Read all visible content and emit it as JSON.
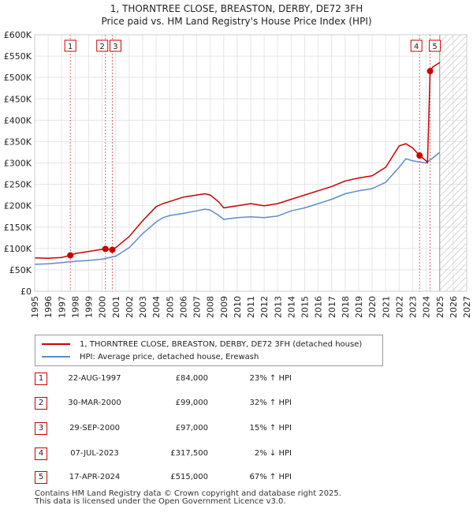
{
  "title_line1": "1, THORNTREE CLOSE, BREASTON, DERBY, DE72 3FH",
  "title_line2": "Price paid vs. HM Land Registry's House Price Index (HPI)",
  "legend": {
    "property": "1, THORNTREE CLOSE, BREASTON, DERBY, DE72 3FH (detached house)",
    "hpi": "HPI: Average price, detached house, Erewash"
  },
  "colors": {
    "property": "#cc0000",
    "hpi": "#5b8ec9",
    "grid": "#e6e6e6",
    "hatch": "#c8c8c8"
  },
  "transactions": [
    {
      "num": "1",
      "date": "22-AUG-1997",
      "price": "£84,000",
      "hpi": "23% ↑ HPI"
    },
    {
      "num": "2",
      "date": "30-MAR-2000",
      "price": "£99,000",
      "hpi": "32% ↑ HPI"
    },
    {
      "num": "3",
      "date": "29-SEP-2000",
      "price": "£97,000",
      "hpi": "15% ↑ HPI"
    },
    {
      "num": "4",
      "date": "07-JUL-2023",
      "price": "£317,500",
      "hpi": "2% ↓ HPI"
    },
    {
      "num": "5",
      "date": "17-APR-2024",
      "price": "£515,000",
      "hpi": "67% ↑ HPI"
    }
  ],
  "footer_line1": "Contains HM Land Registry data © Crown copyright and database right 2025.",
  "footer_line2": "This data is licensed under the Open Government Licence v3.0.",
  "chart_data": {
    "type": "line",
    "title": "1, THORNTREE CLOSE, BREASTON, DERBY, DE72 3FH",
    "subtitle": "Price paid vs. HM Land Registry's House Price Index (HPI)",
    "xlim": [
      1995,
      2027
    ],
    "ylim": [
      0,
      600000
    ],
    "x_ticks": [
      1995,
      1996,
      1997,
      1998,
      1999,
      2000,
      2001,
      2002,
      2003,
      2004,
      2005,
      2006,
      2007,
      2008,
      2009,
      2010,
      2011,
      2012,
      2013,
      2014,
      2015,
      2016,
      2017,
      2018,
      2019,
      2020,
      2021,
      2022,
      2023,
      2024,
      2025,
      2026,
      2027
    ],
    "y_ticks": [
      0,
      50000,
      100000,
      150000,
      200000,
      250000,
      300000,
      350000,
      400000,
      450000,
      500000,
      550000,
      600000
    ],
    "y_tick_labels": [
      "£0",
      "£50K",
      "£100K",
      "£150K",
      "£200K",
      "£250K",
      "£300K",
      "£350K",
      "£400K",
      "£450K",
      "£500K",
      "£550K",
      "£600K"
    ],
    "hatch_start": 2025.0,
    "sales": [
      {
        "num": "1",
        "x": 1997.64,
        "y": 84000
      },
      {
        "num": "2",
        "x": 2000.24,
        "y": 99000
      },
      {
        "num": "3",
        "x": 2000.75,
        "y": 97000
      },
      {
        "num": "4",
        "x": 2023.51,
        "y": 317500
      },
      {
        "num": "5",
        "x": 2024.29,
        "y": 515000
      }
    ],
    "series": [
      {
        "name": "1, THORNTREE CLOSE, BREASTON, DERBY, DE72 3FH (detached house)",
        "x": [
          1995,
          1996,
          1997,
          1997.64,
          1998,
          1999,
          2000,
          2000.24,
          2000.75,
          2001,
          2002,
          2003,
          2004,
          2004.5,
          2005,
          2006,
          2007,
          2007.6,
          2008,
          2008.6,
          2009,
          2010,
          2011,
          2012,
          2013,
          2014,
          2015,
          2016,
          2017,
          2018,
          2019,
          2020,
          2021,
          2022,
          2022.5,
          2023,
          2023.51,
          2024,
          2024.1,
          2024.29,
          2024.5,
          2025
        ],
        "y": [
          78000,
          77000,
          79000,
          84000,
          88000,
          93000,
          98000,
          99000,
          97000,
          102000,
          128000,
          165000,
          198000,
          205000,
          210000,
          220000,
          225000,
          228000,
          225000,
          210000,
          195000,
          200000,
          205000,
          200000,
          205000,
          215000,
          225000,
          235000,
          245000,
          258000,
          265000,
          270000,
          290000,
          340000,
          345000,
          335000,
          317500,
          305000,
          300000,
          515000,
          525000,
          535000
        ]
      },
      {
        "name": "HPI: Average price, detached house, Erewash",
        "x": [
          1995,
          1996,
          1997,
          1998,
          1999,
          2000,
          2001,
          2002,
          2003,
          2004,
          2004.5,
          2005,
          2006,
          2007,
          2007.6,
          2008,
          2008.6,
          2009,
          2010,
          2011,
          2012,
          2013,
          2014,
          2015,
          2016,
          2017,
          2018,
          2019,
          2020,
          2021,
          2022,
          2022.5,
          2023,
          2024,
          2024.5,
          2025
        ],
        "y": [
          63000,
          64000,
          67000,
          70000,
          72000,
          75000,
          82000,
          102000,
          135000,
          162000,
          172000,
          177000,
          182000,
          188000,
          192000,
          190000,
          178000,
          168000,
          172000,
          174000,
          172000,
          176000,
          188000,
          195000,
          205000,
          215000,
          228000,
          235000,
          240000,
          255000,
          290000,
          310000,
          305000,
          300000,
          312000,
          325000
        ]
      }
    ]
  }
}
